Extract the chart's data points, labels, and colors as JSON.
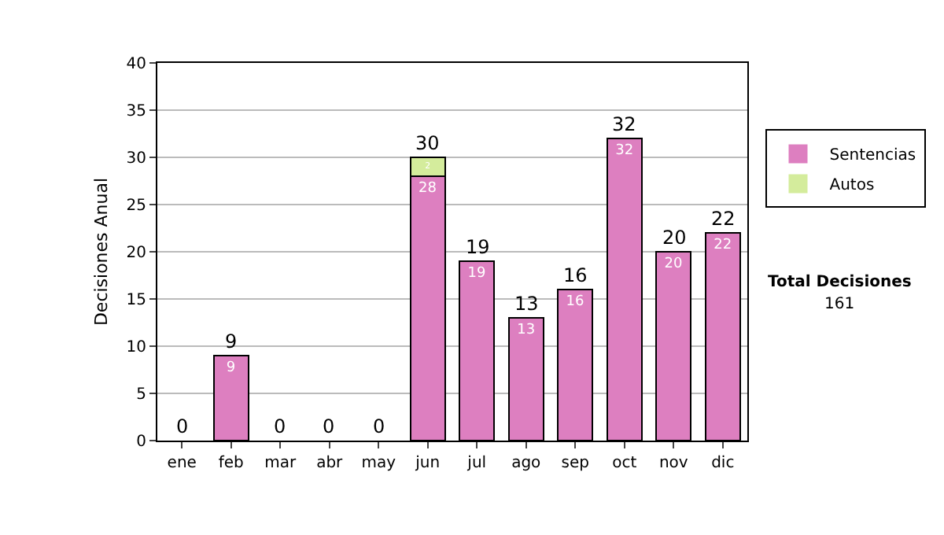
{
  "chart_data": {
    "type": "bar",
    "stacked": true,
    "ylabel": "Decisiones Anual",
    "categories": [
      "ene",
      "feb",
      "mar",
      "abr",
      "may",
      "jun",
      "jul",
      "ago",
      "sep",
      "oct",
      "nov",
      "dic"
    ],
    "series": [
      {
        "name": "Sentencias",
        "color": "#dd7fc0",
        "values": [
          0,
          9,
          0,
          0,
          0,
          28,
          19,
          13,
          16,
          32,
          20,
          22
        ],
        "value_labels": [
          null,
          "9",
          null,
          null,
          null,
          "28",
          "19",
          "13",
          "16",
          "32",
          "20",
          "22"
        ]
      },
      {
        "name": "Autos",
        "color": "#d4ec9c",
        "values": [
          0,
          0,
          0,
          0,
          0,
          2,
          0,
          0,
          0,
          0,
          0,
          0
        ],
        "value_labels": [
          null,
          null,
          null,
          null,
          null,
          "2",
          null,
          null,
          null,
          null,
          null,
          null
        ]
      }
    ],
    "totals": [
      "0",
      "9",
      "0",
      "0",
      "0",
      "30",
      "19",
      "13",
      "16",
      "32",
      "20",
      "22"
    ],
    "ylim": [
      0,
      40
    ],
    "yticks": [
      0,
      5,
      10,
      15,
      20,
      25,
      30,
      35,
      40
    ],
    "grid": "y",
    "legend": "right",
    "annotations": [
      "Total Decisiones",
      "161"
    ]
  }
}
